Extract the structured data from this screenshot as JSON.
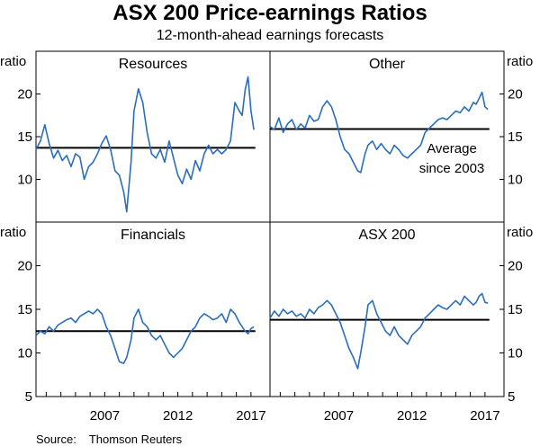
{
  "chart_data": {
    "type": "line",
    "title": "ASX 200 Price-earnings Ratios",
    "subtitle": "12-month-ahead earnings forecasts",
    "source_label": "Source:",
    "source": "Thomson Reuters",
    "x_ticks": [
      "2007",
      "2012",
      "2017"
    ],
    "xlim": [
      2002.3,
      2018.3
    ],
    "y_unit_label": "ratio",
    "rows": [
      {
        "ylim": [
          5,
          25
        ],
        "yticks": [
          "10",
          "15",
          "20"
        ]
      },
      {
        "ylim": [
          5,
          25
        ],
        "yticks": [
          "5",
          "10",
          "15",
          "20"
        ]
      }
    ],
    "annotation": {
      "panel": 1,
      "lines": [
        "Average",
        "since 2003"
      ]
    },
    "colors": {
      "series": "#2a6ebb",
      "average": "#000000"
    },
    "panels": [
      {
        "name": "Resources",
        "average": 13.7,
        "average_range": [
          2002.3,
          2017.3
        ],
        "x": [
          2002.3,
          2002.6,
          2002.9,
          2003.2,
          2003.5,
          2003.8,
          2004.1,
          2004.4,
          2004.7,
          2005.0,
          2005.3,
          2005.6,
          2005.9,
          2006.2,
          2006.5,
          2006.8,
          2007.1,
          2007.4,
          2007.7,
          2008.0,
          2008.3,
          2008.5,
          2008.8,
          2009.0,
          2009.3,
          2009.6,
          2009.9,
          2010.2,
          2010.5,
          2010.8,
          2011.1,
          2011.4,
          2011.7,
          2012.0,
          2012.3,
          2012.6,
          2012.9,
          2013.2,
          2013.5,
          2013.8,
          2014.1,
          2014.4,
          2014.7,
          2015.0,
          2015.3,
          2015.6,
          2015.9,
          2016.2,
          2016.4,
          2016.6,
          2016.8,
          2017.0,
          2017.2
        ],
        "values": [
          13.5,
          14.5,
          16.4,
          14.2,
          12.5,
          13.4,
          12.2,
          12.8,
          11.5,
          13.0,
          12.6,
          10.0,
          11.5,
          12.0,
          13.0,
          14.2,
          15.1,
          13.5,
          11.0,
          10.5,
          8.5,
          6.2,
          12.0,
          18.0,
          20.6,
          19.0,
          15.5,
          13.0,
          12.5,
          13.5,
          12.0,
          14.5,
          12.5,
          10.5,
          9.5,
          11.2,
          10.0,
          12.2,
          11.0,
          13.0,
          14.0,
          13.0,
          13.5,
          13.0,
          13.5,
          14.5,
          19.0,
          18.0,
          17.5,
          20.5,
          22.0,
          18.0,
          15.8
        ]
      },
      {
        "name": "Other",
        "average": 15.9,
        "average_range": [
          2002.3,
          2017.3
        ],
        "x": [
          2002.3,
          2002.6,
          2002.9,
          2003.2,
          2003.5,
          2003.8,
          2004.1,
          2004.4,
          2004.7,
          2005.0,
          2005.3,
          2005.6,
          2005.9,
          2006.2,
          2006.5,
          2006.8,
          2007.1,
          2007.4,
          2007.7,
          2008.0,
          2008.3,
          2008.5,
          2008.8,
          2009.0,
          2009.3,
          2009.6,
          2009.9,
          2010.2,
          2010.5,
          2010.8,
          2011.1,
          2011.4,
          2011.7,
          2012.0,
          2012.3,
          2012.6,
          2012.9,
          2013.2,
          2013.5,
          2013.8,
          2014.1,
          2014.4,
          2014.7,
          2015.0,
          2015.3,
          2015.6,
          2015.9,
          2016.2,
          2016.4,
          2016.6,
          2016.8,
          2017.0,
          2017.2
        ],
        "values": [
          16.2,
          15.8,
          17.2,
          15.5,
          16.5,
          17.0,
          15.8,
          16.5,
          16.0,
          17.5,
          16.8,
          17.0,
          18.5,
          19.2,
          18.5,
          17.0,
          15.0,
          13.5,
          13.0,
          12.0,
          11.0,
          10.8,
          13.0,
          14.0,
          14.5,
          13.5,
          14.2,
          13.5,
          13.0,
          14.0,
          13.5,
          12.8,
          12.5,
          13.0,
          13.5,
          14.0,
          15.5,
          16.0,
          16.5,
          17.0,
          17.2,
          17.0,
          17.5,
          18.0,
          17.8,
          18.5,
          18.0,
          19.0,
          18.8,
          19.5,
          20.2,
          18.5,
          18.2
        ]
      },
      {
        "name": "Financials",
        "average": 12.5,
        "average_range": [
          2002.3,
          2017.3
        ],
        "x": [
          2002.3,
          2002.6,
          2002.9,
          2003.2,
          2003.5,
          2003.8,
          2004.1,
          2004.4,
          2004.7,
          2005.0,
          2005.3,
          2005.6,
          2005.9,
          2006.2,
          2006.5,
          2006.8,
          2007.1,
          2007.4,
          2007.7,
          2008.0,
          2008.3,
          2008.5,
          2008.8,
          2009.0,
          2009.3,
          2009.6,
          2009.9,
          2010.2,
          2010.5,
          2010.8,
          2011.1,
          2011.4,
          2011.7,
          2012.0,
          2012.3,
          2012.6,
          2012.9,
          2013.2,
          2013.5,
          2013.8,
          2014.1,
          2014.4,
          2014.7,
          2015.0,
          2015.3,
          2015.6,
          2015.9,
          2016.2,
          2016.4,
          2016.6,
          2016.8,
          2017.0,
          2017.2
        ],
        "values": [
          12.0,
          12.5,
          12.2,
          13.0,
          12.5,
          13.2,
          13.5,
          13.8,
          14.0,
          13.5,
          14.2,
          14.5,
          14.8,
          14.5,
          15.0,
          14.5,
          13.0,
          12.0,
          10.5,
          9.0,
          8.8,
          9.5,
          11.5,
          14.0,
          15.0,
          13.5,
          13.0,
          12.0,
          11.5,
          12.0,
          11.0,
          10.0,
          9.5,
          10.0,
          10.5,
          11.5,
          12.5,
          13.0,
          14.0,
          14.5,
          14.2,
          13.8,
          14.0,
          14.5,
          13.5,
          15.0,
          14.5,
          13.5,
          13.0,
          12.5,
          12.2,
          12.8,
          13.0
        ]
      },
      {
        "name": "ASX 200",
        "average": 13.8,
        "average_range": [
          2002.3,
          2017.3
        ],
        "x": [
          2002.3,
          2002.6,
          2002.9,
          2003.2,
          2003.5,
          2003.8,
          2004.1,
          2004.4,
          2004.7,
          2005.0,
          2005.3,
          2005.6,
          2005.9,
          2006.2,
          2006.5,
          2006.8,
          2007.1,
          2007.4,
          2007.7,
          2008.0,
          2008.3,
          2008.5,
          2008.8,
          2009.0,
          2009.3,
          2009.6,
          2009.9,
          2010.2,
          2010.5,
          2010.8,
          2011.1,
          2011.4,
          2011.7,
          2012.0,
          2012.3,
          2012.6,
          2012.9,
          2013.2,
          2013.5,
          2013.8,
          2014.1,
          2014.4,
          2014.7,
          2015.0,
          2015.3,
          2015.6,
          2015.9,
          2016.2,
          2016.4,
          2016.6,
          2016.8,
          2017.0,
          2017.2
        ],
        "values": [
          14.0,
          14.8,
          14.2,
          15.0,
          14.5,
          14.8,
          14.2,
          14.5,
          14.0,
          15.0,
          14.5,
          15.2,
          15.5,
          16.0,
          15.5,
          14.5,
          13.5,
          12.0,
          10.5,
          9.5,
          8.2,
          10.0,
          13.0,
          15.5,
          16.0,
          14.5,
          13.5,
          12.5,
          12.0,
          13.0,
          12.0,
          11.5,
          11.0,
          12.0,
          12.5,
          13.0,
          14.0,
          14.5,
          15.0,
          15.5,
          15.2,
          15.0,
          15.5,
          16.0,
          15.5,
          16.5,
          16.0,
          15.5,
          15.8,
          16.5,
          16.8,
          15.8,
          15.7
        ]
      }
    ]
  }
}
